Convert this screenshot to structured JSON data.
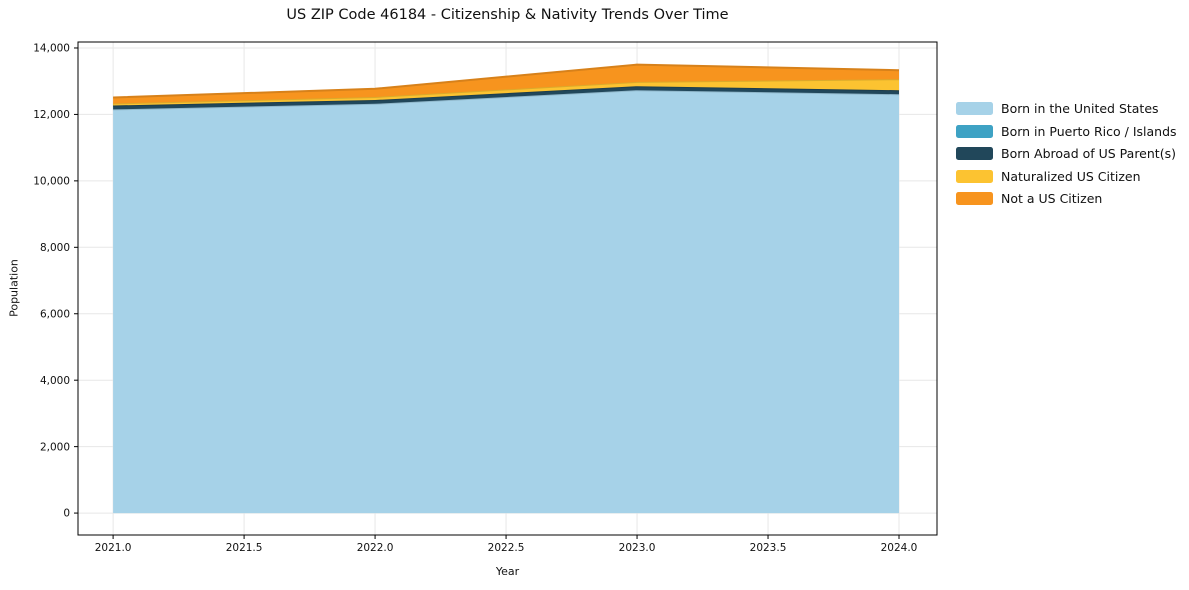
{
  "chart_data": {
    "type": "area",
    "stacked": true,
    "title": "US ZIP Code 46184 - Citizenship & Nativity Trends Over Time",
    "xlabel": "Year",
    "ylabel": "Population",
    "x": [
      2021,
      2022,
      2023,
      2024
    ],
    "series": [
      {
        "name": "Born in the United States",
        "color": "#a6d2e8",
        "values": [
          12150,
          12320,
          12730,
          12610
        ]
      },
      {
        "name": "Born in Puerto Rico / Islands",
        "color": "#3ea2c4",
        "values": [
          0,
          0,
          0,
          0
        ]
      },
      {
        "name": "Born Abroad of US Parent(s)",
        "color": "#21475a",
        "values": [
          120,
          115,
          120,
          120
        ]
      },
      {
        "name": "Naturalized US Citizen",
        "color": "#fcc331",
        "values": [
          60,
          90,
          130,
          330
        ]
      },
      {
        "name": "Not a US Citizen",
        "color": "#f7941e",
        "values": [
          180,
          245,
          520,
          270
        ]
      }
    ],
    "xlim": [
      2020.866,
      2024.145
    ],
    "ylim": [
      -660,
      14180
    ],
    "xticks": [
      2021.0,
      2021.5,
      2022.0,
      2022.5,
      2023.0,
      2023.5,
      2024.0
    ],
    "xtick_labels": [
      "2021.0",
      "2021.5",
      "2022.0",
      "2022.5",
      "2023.0",
      "2023.5",
      "2024.0"
    ],
    "yticks": [
      0,
      2000,
      4000,
      6000,
      8000,
      10000,
      12000,
      14000
    ],
    "ytick_labels": [
      "0",
      "2,000",
      "4,000",
      "6,000",
      "8,000",
      "10,000",
      "12,000",
      "14,000"
    ],
    "grid": true,
    "legend_position": "right-outside",
    "style": {
      "grid_color": "#e7e7e7",
      "spine_color": "#000000",
      "tick_color": "#000000",
      "text_color": "#111111",
      "background": "#ffffff"
    }
  }
}
